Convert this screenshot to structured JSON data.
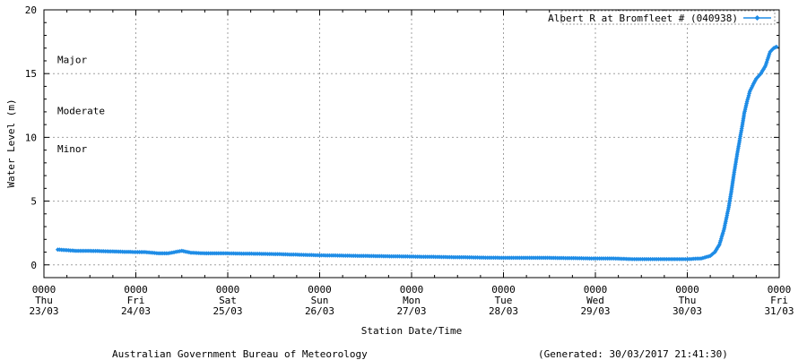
{
  "chart_data": {
    "type": "line",
    "ylabel": "Water Level (m)",
    "xlabel": "Station Date/Time",
    "ylim": [
      -1,
      20
    ],
    "yticks": [
      0,
      5,
      10,
      15,
      20
    ],
    "xlim": [
      0,
      8
    ],
    "xticks": [
      {
        "pos": 0,
        "time": "0000",
        "day": "Thu",
        "date": "23/03"
      },
      {
        "pos": 1,
        "time": "0000",
        "day": "Fri",
        "date": "24/03"
      },
      {
        "pos": 2,
        "time": "0000",
        "day": "Sat",
        "date": "25/03"
      },
      {
        "pos": 3,
        "time": "0000",
        "day": "Sun",
        "date": "26/03"
      },
      {
        "pos": 4,
        "time": "0000",
        "day": "Mon",
        "date": "27/03"
      },
      {
        "pos": 5,
        "time": "0000",
        "day": "Tue",
        "date": "28/03"
      },
      {
        "pos": 6,
        "time": "0000",
        "day": "Wed",
        "date": "29/03"
      },
      {
        "pos": 7,
        "time": "0000",
        "day": "Thu",
        "date": "30/03"
      },
      {
        "pos": 8,
        "time": "0000",
        "day": "Fri",
        "date": "31/03"
      }
    ],
    "grid": true,
    "legend_position": "top-right",
    "flood_levels": [
      {
        "label": "Major",
        "value": 16.1
      },
      {
        "label": "Moderate",
        "value": 12.1
      },
      {
        "label": "Minor",
        "value": 9.1
      }
    ],
    "series": [
      {
        "name": "Albert R at Bromfleet # (040938)",
        "color": "#1e8ce6",
        "x": [
          0.15,
          0.25,
          0.35,
          0.5,
          0.75,
          1.0,
          1.1,
          1.25,
          1.35,
          1.5,
          1.6,
          1.75,
          2.0,
          2.5,
          3.0,
          3.5,
          4.0,
          4.5,
          5.0,
          5.5,
          6.0,
          6.2,
          6.4,
          6.6,
          6.8,
          7.0,
          7.15,
          7.25,
          7.3,
          7.35,
          7.4,
          7.45,
          7.48,
          7.5,
          7.55,
          7.6,
          7.62,
          7.65,
          7.68,
          7.72,
          7.75,
          7.8,
          7.85,
          7.9,
          7.94,
          7.97
        ],
        "values": [
          1.2,
          1.15,
          1.1,
          1.1,
          1.05,
          1.0,
          1.0,
          0.9,
          0.9,
          1.1,
          0.95,
          0.9,
          0.9,
          0.85,
          0.75,
          0.7,
          0.65,
          0.6,
          0.55,
          0.55,
          0.5,
          0.5,
          0.45,
          0.45,
          0.45,
          0.45,
          0.5,
          0.7,
          1.0,
          1.6,
          2.8,
          4.5,
          5.8,
          6.8,
          9.0,
          11.0,
          11.9,
          12.8,
          13.6,
          14.2,
          14.6,
          15.0,
          15.6,
          16.7,
          17.0,
          17.1
        ]
      }
    ]
  },
  "footer": {
    "left": "Australian Government Bureau of Meteorology",
    "right": "(Generated: 30/03/2017 21:41:30)"
  }
}
